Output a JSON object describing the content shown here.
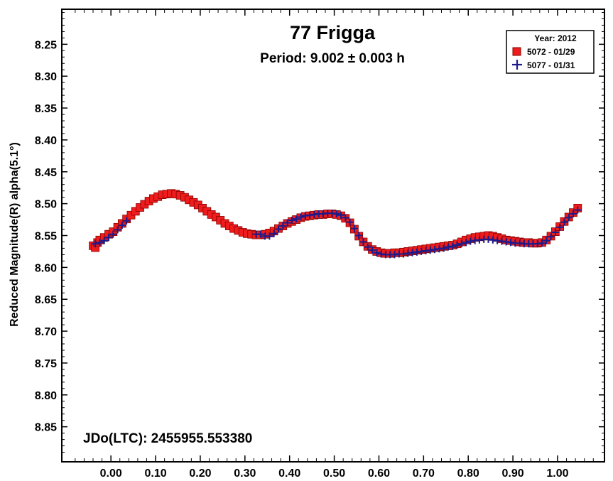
{
  "chart_data": {
    "type": "scatter",
    "title": "77 Frigga",
    "subtitle": "Period: 9.002 ± 0.003 h",
    "xlabel": "",
    "ylabel": "Reduced Magnitude(R) alpha(5.1°)",
    "xlim": [
      -0.11,
      1.105
    ],
    "ylim": [
      8.195,
      8.905
    ],
    "y_inverted": true,
    "grid": false,
    "legend_position": "top-right",
    "legend_title": "Year: 2012",
    "x_ticks": [
      {
        "v": 0.0,
        "label": "0.00"
      },
      {
        "v": 0.1,
        "label": "0.10"
      },
      {
        "v": 0.2,
        "label": "0.20"
      },
      {
        "v": 0.3,
        "label": "0.30"
      },
      {
        "v": 0.4,
        "label": "0.40"
      },
      {
        "v": 0.5,
        "label": "0.50"
      },
      {
        "v": 0.6,
        "label": "0.60"
      },
      {
        "v": 0.7,
        "label": "0.70"
      },
      {
        "v": 0.8,
        "label": "0.80"
      },
      {
        "v": 0.9,
        "label": "0.90"
      },
      {
        "v": 1.0,
        "label": "1.00"
      }
    ],
    "y_ticks": [
      {
        "v": 8.25,
        "label": "8.25"
      },
      {
        "v": 8.3,
        "label": "8.30"
      },
      {
        "v": 8.35,
        "label": "8.35"
      },
      {
        "v": 8.4,
        "label": "8.40"
      },
      {
        "v": 8.45,
        "label": "8.45"
      },
      {
        "v": 8.5,
        "label": "8.50"
      },
      {
        "v": 8.55,
        "label": "8.55"
      },
      {
        "v": 8.6,
        "label": "8.60"
      },
      {
        "v": 8.65,
        "label": "8.65"
      },
      {
        "v": 8.7,
        "label": "8.70"
      },
      {
        "v": 8.75,
        "label": "8.75"
      },
      {
        "v": 8.8,
        "label": "8.80"
      },
      {
        "v": 8.85,
        "label": "8.85"
      }
    ],
    "annotation": "JDo(LTC): 2455955.553380",
    "series": [
      {
        "name": "5072 - 01/29",
        "marker": "square",
        "color": "#ee1c1c",
        "edge": "#8b0000",
        "points": [
          [
            -0.04,
            8.566
          ],
          [
            -0.035,
            8.569
          ],
          [
            -0.03,
            8.561
          ],
          [
            -0.025,
            8.557
          ],
          [
            -0.015,
            8.553
          ],
          [
            -0.005,
            8.548
          ],
          [
            0.005,
            8.544
          ],
          [
            0.015,
            8.537
          ],
          [
            0.025,
            8.531
          ],
          [
            0.035,
            8.524
          ],
          [
            0.045,
            8.518
          ],
          [
            0.055,
            8.512
          ],
          [
            0.065,
            8.506
          ],
          [
            0.075,
            8.501
          ],
          [
            0.085,
            8.496
          ],
          [
            0.095,
            8.492
          ],
          [
            0.105,
            8.489
          ],
          [
            0.115,
            8.486
          ],
          [
            0.125,
            8.485
          ],
          [
            0.135,
            8.484
          ],
          [
            0.145,
            8.485
          ],
          [
            0.155,
            8.487
          ],
          [
            0.165,
            8.49
          ],
          [
            0.175,
            8.494
          ],
          [
            0.185,
            8.498
          ],
          [
            0.195,
            8.502
          ],
          [
            0.205,
            8.507
          ],
          [
            0.215,
            8.512
          ],
          [
            0.225,
            8.517
          ],
          [
            0.235,
            8.521
          ],
          [
            0.245,
            8.526
          ],
          [
            0.255,
            8.531
          ],
          [
            0.265,
            8.535
          ],
          [
            0.275,
            8.539
          ],
          [
            0.285,
            8.542
          ],
          [
            0.295,
            8.545
          ],
          [
            0.305,
            8.547
          ],
          [
            0.315,
            8.548
          ],
          [
            0.325,
            8.549
          ],
          [
            0.335,
            8.549
          ],
          [
            0.345,
            8.548
          ],
          [
            0.355,
            8.546
          ],
          [
            0.365,
            8.543
          ],
          [
            0.375,
            8.539
          ],
          [
            0.385,
            8.535
          ],
          [
            0.395,
            8.531
          ],
          [
            0.405,
            8.528
          ],
          [
            0.415,
            8.525
          ],
          [
            0.425,
            8.522
          ],
          [
            0.435,
            8.52
          ],
          [
            0.445,
            8.519
          ],
          [
            0.455,
            8.518
          ],
          [
            0.465,
            8.517
          ],
          [
            0.475,
            8.517
          ],
          [
            0.485,
            8.516
          ],
          [
            0.495,
            8.516
          ],
          [
            0.505,
            8.517
          ],
          [
            0.515,
            8.519
          ],
          [
            0.525,
            8.523
          ],
          [
            0.535,
            8.53
          ],
          [
            0.545,
            8.54
          ],
          [
            0.555,
            8.551
          ],
          [
            0.565,
            8.56
          ],
          [
            0.575,
            8.567
          ],
          [
            0.585,
            8.572
          ],
          [
            0.595,
            8.575
          ],
          [
            0.605,
            8.577
          ],
          [
            0.615,
            8.578
          ],
          [
            0.625,
            8.578
          ],
          [
            0.635,
            8.577
          ],
          [
            0.645,
            8.577
          ],
          [
            0.655,
            8.576
          ],
          [
            0.665,
            8.575
          ],
          [
            0.675,
            8.574
          ],
          [
            0.685,
            8.573
          ],
          [
            0.695,
            8.572
          ],
          [
            0.705,
            8.571
          ],
          [
            0.715,
            8.57
          ],
          [
            0.725,
            8.569
          ],
          [
            0.735,
            8.568
          ],
          [
            0.745,
            8.567
          ],
          [
            0.755,
            8.566
          ],
          [
            0.765,
            8.565
          ],
          [
            0.775,
            8.563
          ],
          [
            0.785,
            8.56
          ],
          [
            0.795,
            8.557
          ],
          [
            0.805,
            8.555
          ],
          [
            0.815,
            8.553
          ],
          [
            0.825,
            8.552
          ],
          [
            0.835,
            8.551
          ],
          [
            0.845,
            8.55
          ],
          [
            0.855,
            8.551
          ],
          [
            0.865,
            8.553
          ],
          [
            0.875,
            8.555
          ],
          [
            0.885,
            8.557
          ],
          [
            0.895,
            8.558
          ],
          [
            0.905,
            8.559
          ],
          [
            0.915,
            8.56
          ],
          [
            0.925,
            8.561
          ],
          [
            0.935,
            8.561
          ],
          [
            0.945,
            8.562
          ],
          [
            0.955,
            8.562
          ],
          [
            0.965,
            8.561
          ],
          [
            0.975,
            8.557
          ],
          [
            0.985,
            8.551
          ],
          [
            0.995,
            8.544
          ],
          [
            1.005,
            8.536
          ],
          [
            1.015,
            8.528
          ],
          [
            1.025,
            8.521
          ],
          [
            1.035,
            8.514
          ],
          [
            1.045,
            8.507
          ]
        ]
      },
      {
        "name": "5077 - 01/31",
        "marker": "plus",
        "color": "#1b1b8c",
        "points": [
          [
            -0.035,
            8.563
          ],
          [
            -0.025,
            8.561
          ],
          [
            -0.015,
            8.558
          ],
          [
            -0.005,
            8.553
          ],
          [
            0.005,
            8.548
          ],
          [
            0.015,
            8.541
          ],
          [
            0.025,
            8.534
          ],
          [
            0.035,
            8.527
          ],
          [
            0.325,
            8.548
          ],
          [
            0.335,
            8.548
          ],
          [
            0.345,
            8.551
          ],
          [
            0.355,
            8.551
          ],
          [
            0.365,
            8.547
          ],
          [
            0.375,
            8.54
          ],
          [
            0.385,
            8.535
          ],
          [
            0.395,
            8.53
          ],
          [
            0.405,
            8.526
          ],
          [
            0.415,
            8.524
          ],
          [
            0.425,
            8.521
          ],
          [
            0.435,
            8.519
          ],
          [
            0.445,
            8.518
          ],
          [
            0.455,
            8.517
          ],
          [
            0.465,
            8.516
          ],
          [
            0.475,
            8.516
          ],
          [
            0.485,
            8.515
          ],
          [
            0.495,
            8.515
          ],
          [
            0.505,
            8.516
          ],
          [
            0.515,
            8.518
          ],
          [
            0.525,
            8.522
          ],
          [
            0.535,
            8.529
          ],
          [
            0.545,
            8.539
          ],
          [
            0.555,
            8.55
          ],
          [
            0.565,
            8.56
          ],
          [
            0.575,
            8.568
          ],
          [
            0.585,
            8.573
          ],
          [
            0.595,
            8.577
          ],
          [
            0.605,
            8.579
          ],
          [
            0.615,
            8.58
          ],
          [
            0.625,
            8.58
          ],
          [
            0.635,
            8.58
          ],
          [
            0.645,
            8.579
          ],
          [
            0.655,
            8.579
          ],
          [
            0.665,
            8.578
          ],
          [
            0.675,
            8.577
          ],
          [
            0.685,
            8.576
          ],
          [
            0.695,
            8.575
          ],
          [
            0.705,
            8.574
          ],
          [
            0.715,
            8.573
          ],
          [
            0.725,
            8.572
          ],
          [
            0.735,
            8.571
          ],
          [
            0.745,
            8.57
          ],
          [
            0.755,
            8.568
          ],
          [
            0.765,
            8.567
          ],
          [
            0.775,
            8.565
          ],
          [
            0.785,
            8.563
          ],
          [
            0.795,
            8.561
          ],
          [
            0.805,
            8.559
          ],
          [
            0.815,
            8.558
          ],
          [
            0.825,
            8.557
          ],
          [
            0.835,
            8.556
          ],
          [
            0.845,
            8.556
          ],
          [
            0.855,
            8.557
          ],
          [
            0.865,
            8.558
          ],
          [
            0.875,
            8.559
          ],
          [
            0.885,
            8.56
          ],
          [
            0.895,
            8.561
          ],
          [
            0.905,
            8.562
          ],
          [
            0.915,
            8.562
          ],
          [
            0.925,
            8.563
          ],
          [
            0.935,
            8.563
          ],
          [
            0.945,
            8.563
          ],
          [
            0.955,
            8.563
          ],
          [
            0.965,
            8.562
          ],
          [
            0.975,
            8.558
          ],
          [
            0.985,
            8.552
          ],
          [
            0.995,
            8.545
          ],
          [
            1.005,
            8.537
          ],
          [
            1.015,
            8.529
          ],
          [
            1.025,
            8.522
          ],
          [
            1.035,
            8.516
          ],
          [
            1.045,
            8.51
          ]
        ]
      }
    ]
  }
}
